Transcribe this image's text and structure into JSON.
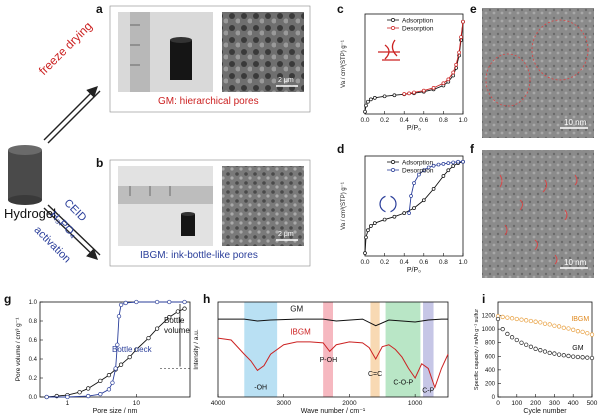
{
  "labels": {
    "hydrogel": "Hydrogel",
    "freeze": "freeze drying",
    "ceid": "CEID",
    "h3po4": "H₃PO₄",
    "activation": "activation"
  },
  "panels": {
    "a": {
      "letter": "a",
      "caption": "GM: hierarchical pores",
      "scale": "2 μm",
      "ruler_numbers": [
        "4",
        "3",
        "2"
      ]
    },
    "b": {
      "letter": "b",
      "caption": "IBGM: ink-bottle-like pores",
      "scale": "2 μm",
      "ruler_numbers": [
        "2",
        "3",
        "4"
      ]
    },
    "c": {
      "letter": "c"
    },
    "d": {
      "letter": "d"
    },
    "e": {
      "letter": "e",
      "scale": "10 nm"
    },
    "f": {
      "letter": "f",
      "scale": "10 nm"
    },
    "g": {
      "letter": "g",
      "annot_volume": [
        "Bottle",
        "volume"
      ],
      "annot_neck": "Bottle neck"
    },
    "h": {
      "letter": "h",
      "peaks": [
        "-OH",
        "P-OH",
        "C=C",
        "C-O-P",
        "C-P"
      ],
      "trace_labels": [
        "GM",
        "IBGM"
      ]
    },
    "i": {
      "letter": "i",
      "trace_labels": [
        "IBGM",
        "GM"
      ]
    }
  },
  "chart_data": [
    {
      "id": "c",
      "type": "line",
      "xlabel": "P/P₀",
      "ylabel": "Va / cm³(STP) g⁻¹",
      "xlim": [
        0,
        1
      ],
      "ylim": [
        0,
        650
      ],
      "xticks": [
        "0.0",
        "0.2",
        "0.4",
        "0.6",
        "0.8",
        "1.0"
      ],
      "series": [
        {
          "name": "Adsorption",
          "color": "#111111",
          "x": [
            0,
            0.01,
            0.03,
            0.06,
            0.1,
            0.2,
            0.3,
            0.4,
            0.5,
            0.6,
            0.7,
            0.8,
            0.85,
            0.9,
            0.93,
            0.96,
            0.98,
            1.0
          ],
          "y": [
            15,
            55,
            80,
            95,
            105,
            115,
            122,
            128,
            135,
            145,
            160,
            185,
            210,
            250,
            300,
            380,
            480,
            600
          ]
        },
        {
          "name": "Desorption",
          "color": "#cc2222",
          "x": [
            1.0,
            0.98,
            0.96,
            0.93,
            0.9,
            0.85,
            0.8,
            0.7,
            0.6,
            0.5,
            0.45,
            0.4
          ],
          "y": [
            600,
            500,
            400,
            320,
            270,
            225,
            200,
            170,
            152,
            140,
            134,
            130
          ]
        }
      ]
    },
    {
      "id": "d",
      "type": "line",
      "xlabel": "P/P₀",
      "ylabel": "Va / cm³(STP) g⁻¹",
      "xlim": [
        0,
        1
      ],
      "ylim": [
        0,
        700
      ],
      "xticks": [
        "0.0",
        "0.2",
        "0.4",
        "0.6",
        "0.8",
        "1.0"
      ],
      "series": [
        {
          "name": "Adsorption",
          "color": "#111111",
          "x": [
            0,
            0.01,
            0.03,
            0.06,
            0.1,
            0.2,
            0.3,
            0.4,
            0.5,
            0.6,
            0.7,
            0.8,
            0.85,
            0.9,
            0.95,
            1.0
          ],
          "y": [
            20,
            130,
            180,
            210,
            230,
            255,
            275,
            300,
            335,
            390,
            470,
            560,
            600,
            630,
            650,
            660
          ]
        },
        {
          "name": "Desorption",
          "color": "#2a3e9a",
          "x": [
            1.0,
            0.95,
            0.9,
            0.85,
            0.8,
            0.75,
            0.7,
            0.65,
            0.6,
            0.55,
            0.5,
            0.47,
            0.45
          ],
          "y": [
            660,
            660,
            655,
            650,
            645,
            640,
            632,
            620,
            600,
            570,
            510,
            420,
            300
          ]
        }
      ]
    },
    {
      "id": "g",
      "type": "line",
      "xlabel": "Pore size / nm",
      "ylabel": "Pore volume / cm³ g⁻¹",
      "xscale": "log",
      "xlim": [
        0.4,
        60
      ],
      "ylim": [
        0,
        1.0
      ],
      "yticks": [
        "0.0",
        "0.2",
        "0.4",
        "0.6",
        "0.8",
        "1.0"
      ],
      "xticks": [
        "1",
        "10"
      ],
      "series": [
        {
          "name": "GM",
          "color": "#111111",
          "x": [
            0.5,
            0.7,
            1,
            1.5,
            2,
            3,
            4,
            5,
            6,
            8,
            10,
            15,
            20,
            30,
            40,
            50
          ],
          "y": [
            0.0,
            0.01,
            0.02,
            0.05,
            0.09,
            0.17,
            0.23,
            0.29,
            0.34,
            0.42,
            0.5,
            0.62,
            0.72,
            0.84,
            0.9,
            0.93
          ]
        },
        {
          "name": "IBGM",
          "color": "#2a3e9a",
          "x": [
            0.5,
            1,
            2,
            3,
            4,
            4.5,
            5,
            5.3,
            5.6,
            6,
            7,
            10,
            20,
            30,
            50
          ],
          "y": [
            0.0,
            0.0,
            0.01,
            0.03,
            0.08,
            0.15,
            0.3,
            0.55,
            0.85,
            0.97,
            0.99,
            1.0,
            1.0,
            1.0,
            1.0
          ]
        }
      ]
    },
    {
      "id": "h",
      "type": "line",
      "xlabel": "Wave number / cm⁻¹",
      "ylabel": "Intensity / a.u.",
      "xlim": [
        4000,
        500
      ],
      "xticks": [
        "4000",
        "3000",
        "2000",
        "1000"
      ],
      "series": [
        {
          "name": "GM",
          "color": "#111111",
          "x": [
            4000,
            3600,
            3400,
            3200,
            2800,
            2400,
            2200,
            1800,
            1600,
            1400,
            1200,
            1000,
            800,
            600,
            500
          ],
          "y": [
            0.82,
            0.82,
            0.8,
            0.81,
            0.82,
            0.82,
            0.8,
            0.82,
            0.75,
            0.81,
            0.8,
            0.79,
            0.81,
            0.82,
            0.82
          ]
        },
        {
          "name": "IBGM",
          "color": "#cc2222",
          "x": [
            4000,
            3800,
            3600,
            3500,
            3400,
            3300,
            3200,
            3000,
            2800,
            2600,
            2400,
            2300,
            2200,
            2000,
            1800,
            1700,
            1600,
            1500,
            1400,
            1300,
            1200,
            1100,
            1000,
            900,
            800,
            700,
            600,
            500
          ],
          "y": [
            0.62,
            0.6,
            0.45,
            0.38,
            0.28,
            0.33,
            0.45,
            0.55,
            0.58,
            0.58,
            0.57,
            0.48,
            0.55,
            0.58,
            0.57,
            0.52,
            0.4,
            0.53,
            0.55,
            0.5,
            0.42,
            0.3,
            0.2,
            0.35,
            0.3,
            0.1,
            0.3,
            0.45
          ]
        }
      ]
    },
    {
      "id": "i",
      "type": "scatter",
      "xlabel": "Cycle number",
      "ylabel": "Specific capacity / mAh g⁻¹ sulfur",
      "xlim": [
        0,
        500
      ],
      "ylim": [
        0,
        1400
      ],
      "xticks": [
        "0",
        "100",
        "200",
        "300",
        "400",
        "500"
      ],
      "yticks": [
        "0",
        "200",
        "400",
        "600",
        "800",
        "1000",
        "1200"
      ],
      "series": [
        {
          "name": "IBGM",
          "color": "#e8a040",
          "x": [
            0,
            25,
            50,
            75,
            100,
            125,
            150,
            175,
            200,
            225,
            250,
            275,
            300,
            325,
            350,
            375,
            400,
            425,
            450,
            475,
            500
          ],
          "y": [
            1190,
            1180,
            1170,
            1160,
            1150,
            1140,
            1130,
            1120,
            1110,
            1100,
            1080,
            1070,
            1050,
            1040,
            1020,
            1010,
            990,
            970,
            960,
            940,
            920
          ]
        },
        {
          "name": "GM",
          "color": "#222222",
          "x": [
            0,
            25,
            50,
            75,
            100,
            125,
            150,
            175,
            200,
            225,
            250,
            275,
            300,
            325,
            350,
            375,
            400,
            425,
            450,
            475,
            500
          ],
          "y": [
            1150,
            1000,
            930,
            880,
            840,
            800,
            770,
            740,
            710,
            690,
            670,
            650,
            640,
            625,
            615,
            605,
            595,
            590,
            585,
            580,
            575
          ]
        }
      ]
    }
  ]
}
